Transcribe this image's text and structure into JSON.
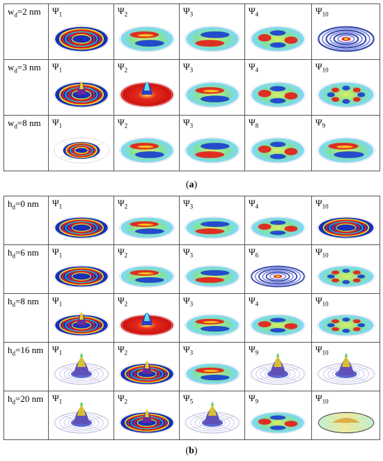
{
  "panel_a": {
    "caption_letter": "a",
    "rows": [
      {
        "label_main": "w",
        "label_sub": "d",
        "label_rest": "=2 nm",
        "cells": [
          {
            "psi": "Ψ",
            "idx": "1",
            "kind": "rings"
          },
          {
            "psi": "Ψ",
            "idx": "2",
            "kind": "dipole"
          },
          {
            "psi": "Ψ",
            "idx": "3",
            "kind": "dipole2"
          },
          {
            "psi": "Ψ",
            "idx": "4",
            "kind": "quad"
          },
          {
            "psi": "Ψ",
            "idx": "10",
            "kind": "bluerings"
          }
        ]
      },
      {
        "label_main": "w",
        "label_sub": "d",
        "label_rest": "=3 nm",
        "cells": [
          {
            "psi": "Ψ",
            "idx": "1",
            "kind": "ringspeak"
          },
          {
            "psi": "Ψ",
            "idx": "2",
            "kind": "redpeak"
          },
          {
            "psi": "Ψ",
            "idx": "3",
            "kind": "dipole"
          },
          {
            "psi": "Ψ",
            "idx": "4",
            "kind": "quad"
          },
          {
            "psi": "Ψ",
            "idx": "10",
            "kind": "multi"
          }
        ]
      },
      {
        "label_main": "w",
        "label_sub": "d",
        "label_rest": "=8 nm",
        "cells": [
          {
            "psi": "Ψ",
            "idx": "1",
            "kind": "smallrings"
          },
          {
            "psi": "Ψ",
            "idx": "2",
            "kind": "dipole"
          },
          {
            "psi": "Ψ",
            "idx": "3",
            "kind": "dipole2"
          },
          {
            "psi": "Ψ",
            "idx": "8",
            "kind": "quad"
          },
          {
            "psi": "Ψ",
            "idx": "9",
            "kind": "dipole"
          }
        ]
      }
    ]
  },
  "panel_b": {
    "caption_letter": "b",
    "rows": [
      {
        "label_main": "h",
        "label_sub": "d",
        "label_rest": "=0 nm",
        "cells": [
          {
            "psi": "Ψ",
            "idx": "1",
            "kind": "rings"
          },
          {
            "psi": "Ψ",
            "idx": "2",
            "kind": "dipole"
          },
          {
            "psi": "Ψ",
            "idx": "3",
            "kind": "dipole2"
          },
          {
            "psi": "Ψ",
            "idx": "4",
            "kind": "quad"
          },
          {
            "psi": "Ψ",
            "idx": "10",
            "kind": "rings"
          }
        ]
      },
      {
        "label_main": "h",
        "label_sub": "d",
        "label_rest": "=6 nm",
        "cells": [
          {
            "psi": "Ψ",
            "idx": "1",
            "kind": "rings"
          },
          {
            "psi": "Ψ",
            "idx": "2",
            "kind": "dipole"
          },
          {
            "psi": "Ψ",
            "idx": "3",
            "kind": "dipole2"
          },
          {
            "psi": "Ψ",
            "idx": "6",
            "kind": "bluerings"
          },
          {
            "psi": "Ψ",
            "idx": "10",
            "kind": "multi"
          }
        ]
      },
      {
        "label_main": "h",
        "label_sub": "d",
        "label_rest": "=8 nm",
        "cells": [
          {
            "psi": "Ψ",
            "idx": "1",
            "kind": "ringspeak"
          },
          {
            "psi": "Ψ",
            "idx": "2",
            "kind": "redpeak"
          },
          {
            "psi": "Ψ",
            "idx": "3",
            "kind": "dipole"
          },
          {
            "psi": "Ψ",
            "idx": "4",
            "kind": "quad"
          },
          {
            "psi": "Ψ",
            "idx": "10",
            "kind": "multi"
          }
        ]
      },
      {
        "label_main": "h",
        "label_sub": "d",
        "label_rest": "=16 nm",
        "cells": [
          {
            "psi": "Ψ",
            "idx": "1",
            "kind": "peak"
          },
          {
            "psi": "Ψ",
            "idx": "2",
            "kind": "ringspeak"
          },
          {
            "psi": "Ψ",
            "idx": "3",
            "kind": "dipole"
          },
          {
            "psi": "Ψ",
            "idx": "9",
            "kind": "peak"
          },
          {
            "psi": "Ψ",
            "idx": "10",
            "kind": "peak"
          }
        ]
      },
      {
        "label_main": "h",
        "label_sub": "d",
        "label_rest": "=20 nm",
        "cells": [
          {
            "psi": "Ψ",
            "idx": "1",
            "kind": "peak"
          },
          {
            "psi": "Ψ",
            "idx": "2",
            "kind": "ringspeak"
          },
          {
            "psi": "Ψ",
            "idx": "5",
            "kind": "peak"
          },
          {
            "psi": "Ψ",
            "idx": "9",
            "kind": "quad"
          },
          {
            "psi": "Ψ",
            "idx": "10",
            "kind": "flat"
          }
        ]
      }
    ]
  }
}
